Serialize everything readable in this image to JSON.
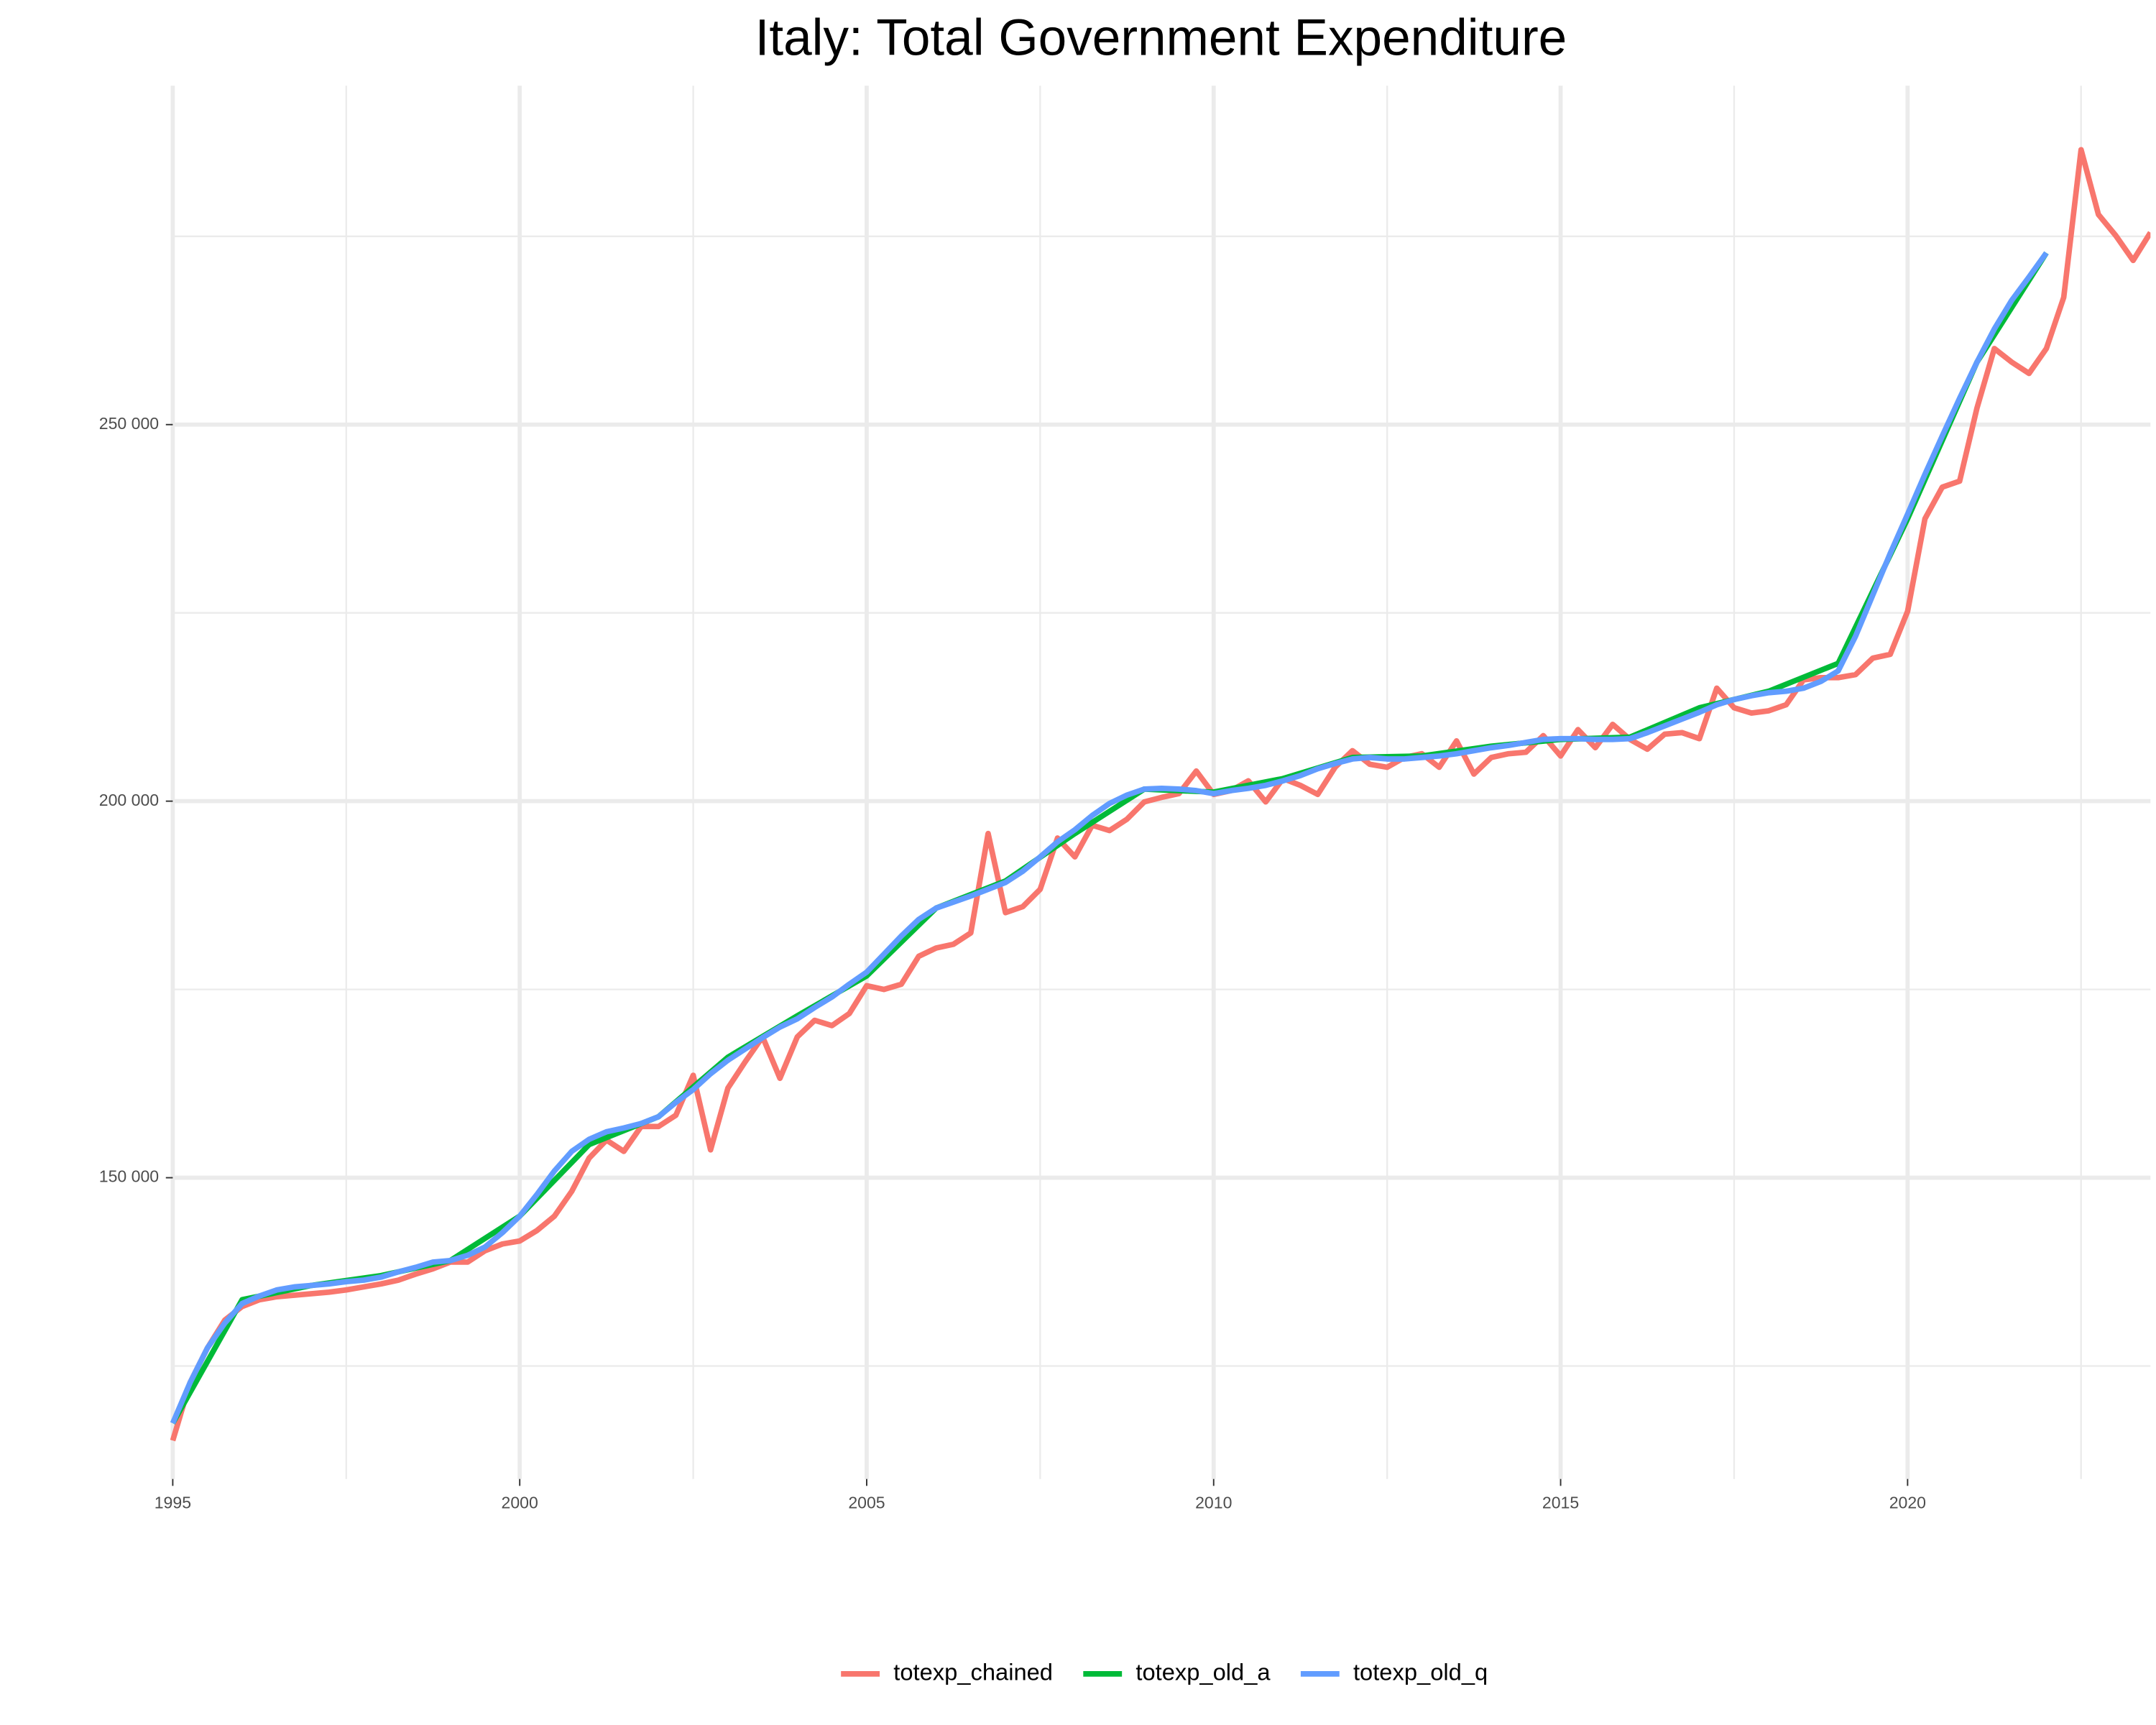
{
  "chart_data": {
    "type": "line",
    "title": "Italy: Total Government Expenditure",
    "xlim": [
      1995,
      2023.5
    ],
    "ylim": [
      110000,
      295000
    ],
    "xticks": [
      1995,
      2000,
      2005,
      2010,
      2015,
      2020
    ],
    "yticks": [
      {
        "value": 150000,
        "label": "150 000"
      },
      {
        "value": 200000,
        "label": "200 000"
      },
      {
        "value": 250000,
        "label": "250 000"
      }
    ],
    "grid": true,
    "minor_grid": true,
    "legend": "bottom",
    "series": [
      {
        "name": "totexp_chained",
        "color": "#f8766d",
        "x": [
          1995,
          1995.25,
          1995.5,
          1995.75,
          1996,
          1996.25,
          1996.5,
          1996.75,
          1997,
          1997.25,
          1997.5,
          1997.75,
          1998,
          1998.25,
          1998.5,
          1998.75,
          1999,
          1999.25,
          1999.5,
          1999.75,
          2000,
          2000.25,
          2000.5,
          2000.75,
          2001,
          2001.25,
          2001.5,
          2001.75,
          2002,
          2002.25,
          2002.5,
          2002.75,
          2003,
          2003.25,
          2003.5,
          2003.75,
          2004,
          2004.25,
          2004.5,
          2004.75,
          2005,
          2005.25,
          2005.5,
          2005.75,
          2006,
          2006.25,
          2006.5,
          2006.75,
          2007,
          2007.25,
          2007.5,
          2007.75,
          2008,
          2008.25,
          2008.5,
          2008.75,
          2009,
          2009.25,
          2009.5,
          2009.75,
          2010,
          2010.25,
          2010.5,
          2010.75,
          2011,
          2011.25,
          2011.5,
          2011.75,
          2012,
          2012.25,
          2012.5,
          2012.75,
          2013,
          2013.25,
          2013.5,
          2013.75,
          2014,
          2014.25,
          2014.5,
          2014.75,
          2015,
          2015.25,
          2015.5,
          2015.75,
          2016,
          2016.25,
          2016.5,
          2016.75,
          2017,
          2017.25,
          2017.5,
          2017.75,
          2018,
          2018.25,
          2018.5,
          2018.75,
          2019,
          2019.25,
          2019.5,
          2019.75,
          2020,
          2020.25,
          2020.5,
          2020.75,
          2021,
          2021.25,
          2021.5,
          2021.75,
          2022,
          2022.25,
          2022.5,
          2022.75,
          2023,
          2023.25,
          2023.5
        ],
        "values": [
          115100,
          122800,
          127400,
          131100,
          132900,
          133800,
          134200,
          134400,
          134600,
          134800,
          135100,
          135500,
          135900,
          136400,
          137200,
          137900,
          138800,
          138800,
          140300,
          141200,
          141600,
          143000,
          144900,
          148200,
          152600,
          155000,
          153500,
          156800,
          156800,
          158300,
          163600,
          153700,
          161900,
          165400,
          168700,
          163200,
          168700,
          170900,
          170200,
          171800,
          175500,
          175000,
          175700,
          179400,
          180500,
          181000,
          182500,
          195700,
          185200,
          186000,
          188300,
          195100,
          192600,
          196800,
          196100,
          197600,
          199900,
          200500,
          201000,
          204000,
          200900,
          201400,
          202700,
          199900,
          203000,
          202100,
          200900,
          204500,
          206700,
          204900,
          204500,
          205800,
          206300,
          204500,
          208000,
          203600,
          205800,
          206300,
          206500,
          208700,
          206000,
          209500,
          207100,
          210200,
          208200,
          206900,
          208900,
          209100,
          208300,
          215000,
          212400,
          211700,
          212000,
          212800,
          216100,
          216400,
          216400,
          216800,
          219000,
          219500,
          225200,
          237500,
          241700,
          242500,
          252200,
          260100,
          258300,
          256800,
          260100,
          266900,
          286500,
          277900,
          275100,
          271800,
          275500
        ]
      },
      {
        "name": "totexp_old_a",
        "color": "#00ba38",
        "x": [
          1995,
          1996,
          1997,
          1998,
          1999,
          2000,
          2001,
          2002,
          2003,
          2004,
          2005,
          2006,
          2007,
          2008,
          2009,
          2010,
          2011,
          2012,
          2013,
          2014,
          2015,
          2016,
          2017,
          2018,
          2019,
          2020,
          2021,
          2022
        ],
        "values": [
          117400,
          133800,
          135700,
          137000,
          139000,
          144900,
          154400,
          158100,
          166000,
          171500,
          176800,
          185800,
          189400,
          195700,
          201600,
          201200,
          203000,
          205800,
          206000,
          207300,
          208200,
          208500,
          212400,
          214600,
          218300,
          237500,
          258300,
          272800
        ]
      },
      {
        "name": "totexp_old_q",
        "color": "#619cff",
        "x": [
          1995,
          1995.25,
          1995.5,
          1995.75,
          1996,
          1996.25,
          1996.5,
          1996.75,
          1997,
          1997.25,
          1997.5,
          1997.75,
          1998,
          1998.25,
          1998.5,
          1998.75,
          1999,
          1999.25,
          1999.5,
          1999.75,
          2000,
          2000.25,
          2000.5,
          2000.75,
          2001,
          2001.25,
          2001.5,
          2001.75,
          2002,
          2002.25,
          2002.5,
          2002.75,
          2003,
          2003.25,
          2003.5,
          2003.75,
          2004,
          2004.25,
          2004.5,
          2004.75,
          2005,
          2005.25,
          2005.5,
          2005.75,
          2006,
          2006.25,
          2006.5,
          2006.75,
          2007,
          2007.25,
          2007.5,
          2007.75,
          2008,
          2008.25,
          2008.5,
          2008.75,
          2009,
          2009.25,
          2009.5,
          2009.75,
          2010,
          2010.25,
          2010.5,
          2010.75,
          2011,
          2011.25,
          2011.5,
          2011.75,
          2012,
          2012.25,
          2012.5,
          2012.75,
          2013,
          2013.25,
          2013.5,
          2013.75,
          2014,
          2014.25,
          2014.5,
          2014.75,
          2015,
          2015.25,
          2015.5,
          2015.75,
          2016,
          2016.25,
          2016.5,
          2016.75,
          2017,
          2017.25,
          2017.5,
          2017.75,
          2018,
          2018.25,
          2018.5,
          2018.75,
          2019,
          2019.25,
          2019.5,
          2019.75,
          2020,
          2020.25,
          2020.5,
          2020.75,
          2021,
          2021.25,
          2021.5,
          2021.75,
          2022
        ],
        "values": [
          117400,
          122800,
          127400,
          130700,
          133300,
          134300,
          135100,
          135500,
          135700,
          135900,
          136200,
          136400,
          136800,
          137500,
          138100,
          138800,
          139000,
          139700,
          140800,
          142700,
          144900,
          147800,
          150900,
          153500,
          155100,
          156100,
          156600,
          157200,
          158100,
          160000,
          161700,
          163800,
          165600,
          167100,
          168600,
          170000,
          171100,
          172600,
          174000,
          175700,
          177300,
          179700,
          182100,
          184300,
          185800,
          186600,
          187400,
          188300,
          189200,
          190700,
          192600,
          194600,
          196200,
          198100,
          199700,
          200800,
          201600,
          201700,
          201600,
          201400,
          201000,
          201400,
          201700,
          202100,
          202700,
          203400,
          204300,
          205000,
          205600,
          205800,
          205600,
          205600,
          205800,
          206000,
          206300,
          206700,
          207100,
          207400,
          207800,
          208200,
          208300,
          208300,
          208200,
          208200,
          208300,
          209100,
          210000,
          210900,
          211800,
          212800,
          213500,
          214000,
          214400,
          214600,
          215000,
          215900,
          217300,
          221900,
          227400,
          232900,
          238100,
          243400,
          248500,
          253500,
          258300,
          262700,
          266500,
          269600,
          272800
        ]
      }
    ]
  }
}
